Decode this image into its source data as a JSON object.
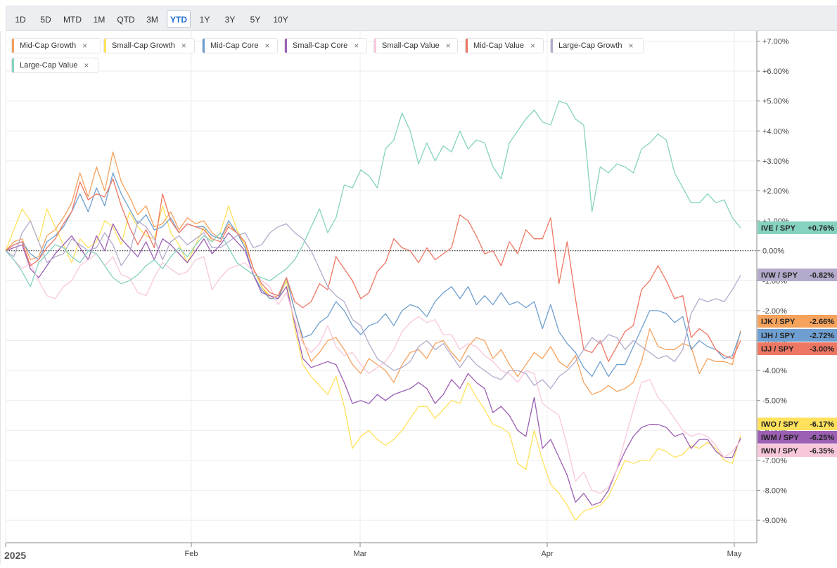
{
  "toolbar": {
    "ranges": [
      "1D",
      "5D",
      "MTD",
      "1M",
      "QTD",
      "3M",
      "YTD",
      "1Y",
      "3Y",
      "5Y",
      "10Y"
    ],
    "active": "YTD"
  },
  "chart_data": {
    "type": "line",
    "x_labels": [
      "2025",
      "Feb",
      "Mar",
      "Apr",
      "May"
    ],
    "y_ticks": [
      "+7.00%",
      "+6.00%",
      "+5.00%",
      "+4.00%",
      "+3.00%",
      "+2.00%",
      "+1.00%",
      "0.00%",
      "-1.00%",
      "-2.00%",
      "-3.00%",
      "-4.00%",
      "-5.00%",
      "-6.00%",
      "-7.00%",
      "-8.00%",
      "-9.00%"
    ],
    "ylim": [
      -9.4,
      7.3
    ],
    "grid": true,
    "legend_position": "top-left",
    "series": [
      {
        "name": "Mid-Cap Growth",
        "color": "#f5a25d",
        "end_label": "IJK / SPY",
        "end_value": "-2.66%",
        "values": [
          0,
          0.3,
          0.4,
          -0.3,
          -0.2,
          0.5,
          0.7,
          1.1,
          1.6,
          2.6,
          1.8,
          2.8,
          2.0,
          3.3,
          2.3,
          1.8,
          1.2,
          1.5,
          0.8,
          0.9,
          1.3,
          0.7,
          1.1,
          0.9,
          1.0,
          0.6,
          0.4,
          0.9,
          0.6,
          0.2,
          -0.6,
          -1.2,
          -1.6,
          -1.5,
          -0.9,
          -2.0,
          -3.0,
          -3.7,
          -3.4,
          -3.0,
          -2.9,
          -3.3,
          -3.8,
          -4.1,
          -3.6,
          -3.8,
          -4.0,
          -4.4,
          -3.8,
          -3.4,
          -3.3,
          -3.6,
          -3.1,
          -3.0,
          -3.4,
          -3.7,
          -3.2,
          -2.9,
          -3.0,
          -3.6,
          -3.3,
          -3.8,
          -4.2,
          -3.8,
          -3.4,
          -3.6,
          -3.2,
          -3.7,
          -3.9,
          -3.5,
          -4.4,
          -4.8,
          -4.7,
          -4.5,
          -4.7,
          -4.6,
          -4.4,
          -3.7,
          -2.6,
          -3.2,
          -3.3,
          -3.3,
          -3.1,
          -3.2,
          -4.1,
          -3.6,
          -3.7,
          -3.7,
          -3.8,
          -2.66
        ]
      },
      {
        "name": "Small-Cap Growth",
        "color": "#ffe15c",
        "end_label": "IWO / SPY",
        "end_value": "-6.17%",
        "values": [
          0,
          0.7,
          1.4,
          1.0,
          0.3,
          1.4,
          0.8,
          0.2,
          -0.4,
          0.4,
          0.1,
          0.3,
          1.0,
          0.8,
          0.2,
          1.3,
          0.8,
          0.5,
          0.4,
          1.5,
          0.6,
          0.2,
          -0.4,
          0.2,
          0.8,
          0.3,
          0.6,
          1.5,
          0.7,
          0.2,
          -0.6,
          -1.2,
          -1.5,
          -1.6,
          -1.0,
          -2.6,
          -3.8,
          -4.2,
          -4.5,
          -4.8,
          -4.2,
          -5.2,
          -6.6,
          -6.2,
          -6.0,
          -6.3,
          -6.5,
          -6.3,
          -6.0,
          -5.6,
          -5.2,
          -5.2,
          -5.6,
          -5.3,
          -5.0,
          -5.1,
          -4.4,
          -4.9,
          -5.3,
          -5.8,
          -5.9,
          -6.1,
          -7.1,
          -7.3,
          -6.0,
          -7.0,
          -7.8,
          -8.1,
          -8.5,
          -9.0,
          -8.7,
          -8.6,
          -8.5,
          -8.2,
          -7.6,
          -7.0,
          -7.1,
          -7.0,
          -7.0,
          -6.6,
          -6.7,
          -6.9,
          -6.8,
          -6.5,
          -6.6,
          -6.4,
          -6.6,
          -7.0,
          -7.1,
          -6.17
        ]
      },
      {
        "name": "Mid-Cap Core",
        "color": "#6f9fd0",
        "end_label": "IJH / SPY",
        "end_value": "-2.72%",
        "values": [
          0,
          0.2,
          0.3,
          -0.1,
          -0.3,
          0.3,
          0.5,
          0.8,
          1.3,
          1.9,
          1.3,
          2.1,
          1.5,
          2.6,
          1.9,
          1.4,
          0.9,
          1.2,
          0.7,
          0.8,
          1.1,
          0.6,
          0.9,
          0.8,
          0.8,
          0.5,
          0.4,
          1.0,
          0.6,
          0.1,
          -0.8,
          -1.3,
          -1.6,
          -1.6,
          -0.9,
          -2.0,
          -2.9,
          -2.8,
          -2.4,
          -2.2,
          -1.7,
          -2.0,
          -2.5,
          -2.8,
          -2.5,
          -2.4,
          -2.1,
          -2.5,
          -2.0,
          -1.8,
          -1.9,
          -2.2,
          -1.7,
          -1.4,
          -1.2,
          -1.6,
          -1.2,
          -1.8,
          -1.5,
          -1.8,
          -1.4,
          -1.8,
          -1.7,
          -1.9,
          -1.7,
          -2.6,
          -1.8,
          -2.7,
          -3.1,
          -3.4,
          -3.9,
          -4.2,
          -3.7,
          -4.2,
          -3.8,
          -3.8,
          -3.2,
          -2.6,
          -2.0,
          -2.0,
          -2.1,
          -2.4,
          -2.2,
          -3.3,
          -3.0,
          -3.2,
          -3.3,
          -3.6,
          -3.5,
          -2.72
        ]
      },
      {
        "name": "Small-Cap Core",
        "color": "#9c5fb3",
        "end_label": "IWM / SPY",
        "end_value": "-6.25%",
        "values": [
          0,
          0.1,
          0.2,
          -0.6,
          -0.9,
          -0.5,
          -0.1,
          0.2,
          0.5,
          0.1,
          -0.3,
          0.5,
          0.0,
          0.9,
          0.4,
          0.1,
          -0.2,
          0.3,
          -0.3,
          0.4,
          0.2,
          -0.1,
          -0.4,
          0.0,
          0.4,
          -0.1,
          0.2,
          0.6,
          0.3,
          0.0,
          -0.8,
          -1.4,
          -1.5,
          -1.6,
          -1.2,
          -2.4,
          -3.6,
          -3.9,
          -3.8,
          -3.7,
          -3.8,
          -4.4,
          -5.1,
          -5.0,
          -5.1,
          -4.8,
          -5.0,
          -4.8,
          -4.7,
          -4.6,
          -4.4,
          -4.6,
          -5.1,
          -4.8,
          -4.3,
          -4.6,
          -4.1,
          -4.4,
          -4.6,
          -5.4,
          -5.2,
          -5.5,
          -6.0,
          -6.2,
          -4.9,
          -6.6,
          -6.3,
          -6.9,
          -7.5,
          -8.4,
          -8.1,
          -8.5,
          -8.4,
          -8.0,
          -7.3,
          -6.7,
          -6.2,
          -5.9,
          -5.8,
          -5.8,
          -5.9,
          -6.2,
          -6.1,
          -6.6,
          -6.3,
          -6.3,
          -6.7,
          -6.9,
          -6.9,
          -6.25
        ]
      },
      {
        "name": "Small-Cap Value",
        "color": "#f9c7dc",
        "end_label": "IWN / SPY",
        "end_value": "-6.35%",
        "values": [
          0,
          -0.3,
          -0.6,
          -0.4,
          -1.0,
          -1.5,
          -1.6,
          -1.2,
          -1.0,
          -0.5,
          -0.3,
          -0.1,
          -0.5,
          -0.2,
          -0.8,
          -0.9,
          -1.4,
          -1.5,
          -0.9,
          -0.4,
          -0.6,
          -0.8,
          -0.7,
          -0.3,
          -0.2,
          -1.3,
          -0.9,
          -0.6,
          -0.5,
          -0.4,
          -0.7,
          -1.0,
          -1.2,
          -1.8,
          -1.4,
          -2.3,
          -3.1,
          -3.4,
          -3.1,
          -2.5,
          -3.2,
          -3.5,
          -3.4,
          -3.8,
          -4.1,
          -3.9,
          -3.7,
          -3.3,
          -2.7,
          -2.4,
          -2.2,
          -2.4,
          -2.3,
          -2.8,
          -2.8,
          -3.3,
          -3.1,
          -3.2,
          -3.5,
          -3.7,
          -4.0,
          -4.1,
          -4.4,
          -4.0,
          -4.1,
          -5.1,
          -5.3,
          -5.5,
          -6.5,
          -7.7,
          -7.4,
          -8.0,
          -8.1,
          -7.9,
          -7.3,
          -6.3,
          -5.3,
          -4.4,
          -4.3,
          -4.9,
          -5.2,
          -5.6,
          -6.0,
          -6.2,
          -6.1,
          -6.2,
          -6.5,
          -6.9,
          -6.7,
          -6.35
        ]
      },
      {
        "name": "Mid-Cap Value",
        "color": "#ee7764",
        "end_label": "IJJ / SPY",
        "end_value": "-3.00%",
        "values": [
          0,
          0.2,
          0.3,
          -0.5,
          -0.3,
          0.1,
          0.4,
          0.9,
          1.3,
          2.3,
          1.7,
          1.9,
          1.8,
          2.4,
          1.5,
          0.8,
          0.2,
          0.7,
          0.1,
          1.9,
          1.0,
          0.6,
          0.9,
          0.8,
          0.7,
          0.4,
          0.3,
          0.8,
          0.6,
          0.3,
          -0.6,
          -1.1,
          -1.4,
          -1.5,
          -0.9,
          -1.7,
          -1.9,
          -1.7,
          -1.1,
          -1.3,
          -0.2,
          -0.6,
          -1.0,
          -1.6,
          -1.4,
          -0.7,
          -0.4,
          0.4,
          0.1,
          0.0,
          -0.4,
          0.1,
          -0.3,
          -0.1,
          0.1,
          1.2,
          1.0,
          0.5,
          -0.1,
          0.0,
          -0.5,
          0.3,
          -0.1,
          0.7,
          0.4,
          0.4,
          1.1,
          -1.1,
          0.3,
          -1.6,
          -3.3,
          -3.4,
          -3.0,
          -3.7,
          -3.2,
          -2.7,
          -2.5,
          -1.3,
          -1.0,
          -0.5,
          -1.0,
          -1.6,
          -1.5,
          -2.9,
          -2.6,
          -2.8,
          -3.3,
          -3.5,
          -3.6,
          -3.0
        ]
      },
      {
        "name": "Large-Cap Growth",
        "color": "#b4aacb",
        "end_label": "IVW / SPY",
        "end_value": "-0.82%",
        "values": [
          0,
          -0.2,
          0.6,
          1.0,
          0.3,
          -0.4,
          -0.2,
          -0.1,
          0.4,
          0.2,
          0.0,
          0.1,
          0.6,
          0.2,
          -0.5,
          -0.1,
          1.0,
          0.8,
          0.4,
          -0.3,
          0.3,
          0.5,
          0.2,
          0.4,
          0.6,
          0.1,
          0.1,
          0.3,
          0.5,
          0.6,
          0.1,
          0.2,
          0.6,
          0.8,
          0.9,
          0.6,
          0.4,
          0.0,
          -0.6,
          -1.2,
          -1.5,
          -1.7,
          -2.3,
          -2.5,
          -3.1,
          -3.6,
          -3.8,
          -4.0,
          -3.9,
          -3.7,
          -3.2,
          -3.0,
          -3.3,
          -3.1,
          -3.5,
          -3.9,
          -3.5,
          -3.8,
          -4.0,
          -4.2,
          -4.3,
          -4.0,
          -4.0,
          -4.1,
          -4.5,
          -4.3,
          -4.6,
          -4.2,
          -4.0,
          -3.7,
          -3.3,
          -2.9,
          -3.1,
          -2.8,
          -2.9,
          -3.3,
          -3.0,
          -3.2,
          -3.4,
          -3.6,
          -3.5,
          -3.7,
          -3.3,
          -2.1,
          -1.6,
          -1.7,
          -1.6,
          -1.7,
          -1.3,
          -0.82
        ]
      },
      {
        "name": "Large-Cap Value",
        "color": "#86d2c0",
        "end_label": "IVE / SPY",
        "end_value": "+0.76%",
        "values": [
          0,
          -0.3,
          -0.7,
          -1.2,
          -0.4,
          -0.1,
          0.2,
          0.1,
          -0.2,
          -0.4,
          0.0,
          -0.1,
          -0.5,
          -0.9,
          -1.1,
          -1.0,
          -0.8,
          -0.5,
          -0.3,
          -0.6,
          -0.2,
          0.1,
          -0.2,
          0.2,
          0.5,
          0.3,
          0.6,
          0.1,
          -0.4,
          -0.6,
          -0.8,
          -0.9,
          -1.0,
          -0.8,
          -0.6,
          -0.3,
          0.2,
          0.8,
          1.4,
          0.6,
          1.1,
          2.2,
          2.1,
          2.7,
          2.5,
          2.1,
          3.4,
          3.7,
          4.6,
          4.0,
          2.9,
          3.6,
          3.0,
          3.5,
          3.3,
          4.0,
          3.4,
          3.7,
          3.6,
          2.8,
          2.4,
          3.6,
          4.0,
          4.4,
          4.7,
          4.3,
          4.2,
          5.0,
          4.9,
          4.4,
          4.2,
          1.3,
          2.8,
          2.6,
          2.9,
          2.8,
          2.6,
          3.4,
          3.6,
          3.9,
          3.7,
          2.6,
          2.1,
          1.6,
          1.6,
          1.9,
          1.6,
          1.7,
          1.1,
          0.76
        ]
      }
    ]
  }
}
